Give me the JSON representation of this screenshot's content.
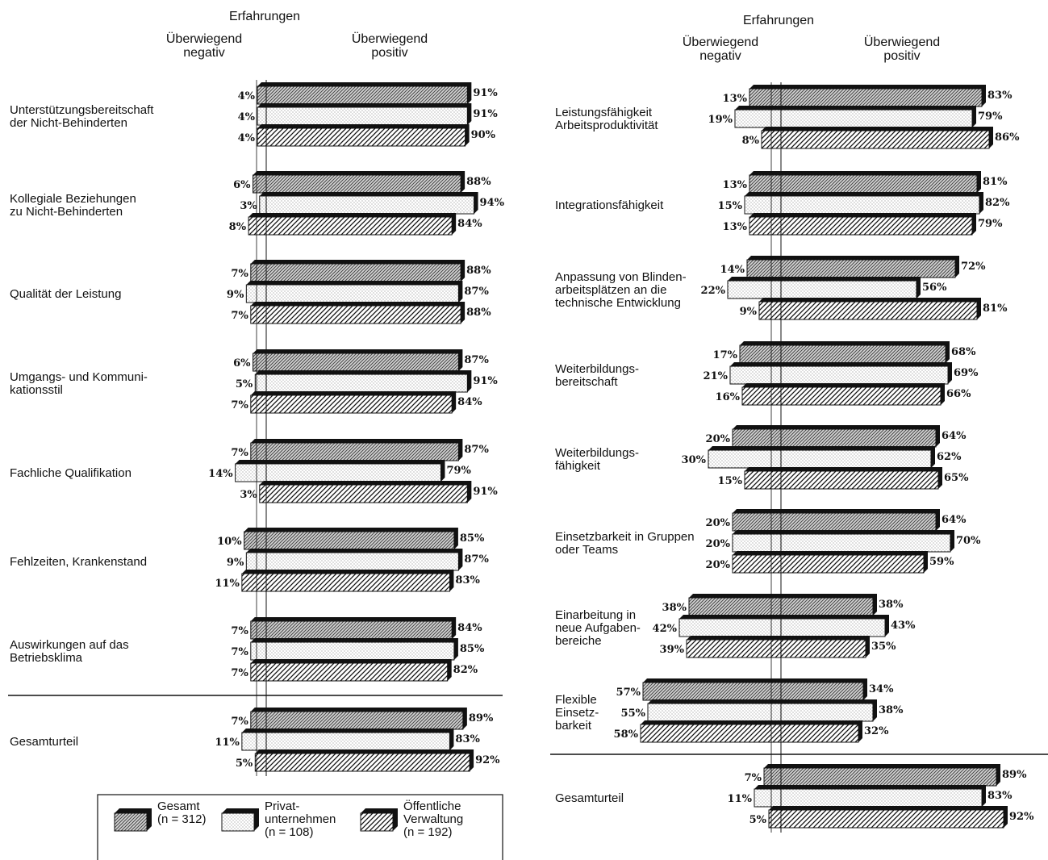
{
  "chart_data": [
    {
      "type": "bar",
      "title": "Erfahrungen",
      "negative_label": "Überwiegend negativ",
      "positive_label": "Überwiegend positiv",
      "series": [
        {
          "name": "Gesamt (n = 312)"
        },
        {
          "name": "Privatunternehmen (n = 108)"
        },
        {
          "name": "Öffentliche Verwaltung (n = 192)"
        }
      ],
      "categories": [
        {
          "label": [
            "Unterstützungsbereitschaft",
            "der Nicht-Behinderten"
          ],
          "neg": [
            4,
            4,
            4
          ],
          "pos": [
            91,
            91,
            90
          ]
        },
        {
          "label": [
            "Kollegiale Beziehungen",
            "zu Nicht-Behinderten"
          ],
          "neg": [
            6,
            3,
            8
          ],
          "pos": [
            88,
            94,
            84
          ]
        },
        {
          "label": [
            "Qualität der Leistung"
          ],
          "neg": [
            7,
            9,
            7
          ],
          "pos": [
            88,
            87,
            88
          ]
        },
        {
          "label": [
            "Umgangs- und Kommuni-",
            "kationsstil"
          ],
          "neg": [
            6,
            5,
            7
          ],
          "pos": [
            87,
            91,
            84
          ]
        },
        {
          "label": [
            "Fachliche Qualifikation"
          ],
          "neg": [
            7,
            14,
            3
          ],
          "pos": [
            87,
            79,
            91
          ]
        },
        {
          "label": [
            "Fehlzeiten, Krankenstand"
          ],
          "neg": [
            10,
            9,
            11
          ],
          "pos": [
            85,
            87,
            83
          ]
        },
        {
          "label": [
            "Auswirkungen auf das",
            "Betriebsklima"
          ],
          "neg": [
            7,
            7,
            7
          ],
          "pos": [
            84,
            85,
            82
          ]
        },
        {
          "label": [
            "Gesamturteil"
          ],
          "neg": [
            7,
            11,
            5
          ],
          "pos": [
            89,
            83,
            92
          ],
          "separated": true
        }
      ]
    },
    {
      "type": "bar",
      "title": "Erfahrungen",
      "negative_label": "Überwiegend negativ",
      "positive_label": "Überwiegend positiv",
      "series": [
        {
          "name": "Gesamt (n = 312)"
        },
        {
          "name": "Privatunternehmen (n = 108)"
        },
        {
          "name": "Öffentliche Verwaltung (n = 192)"
        }
      ],
      "categories": [
        {
          "label": [
            "Leistungsfähigkeit",
            "Arbeitsproduktivität"
          ],
          "neg": [
            13,
            19,
            8
          ],
          "pos": [
            83,
            79,
            86
          ]
        },
        {
          "label": [
            "Integrationsfähigkeit"
          ],
          "neg": [
            13,
            15,
            13
          ],
          "pos": [
            81,
            82,
            79
          ]
        },
        {
          "label": [
            "Anpassung von Blinden-",
            "arbeitsplätzen an die",
            "technische Entwicklung"
          ],
          "neg": [
            14,
            22,
            9
          ],
          "pos": [
            72,
            56,
            81
          ]
        },
        {
          "label": [
            "Weiterbildungs-",
            "bereitschaft"
          ],
          "neg": [
            17,
            21,
            16
          ],
          "pos": [
            68,
            69,
            66
          ]
        },
        {
          "label": [
            "Weiterbildungs-",
            "fähigkeit"
          ],
          "neg": [
            20,
            30,
            15
          ],
          "pos": [
            64,
            62,
            65
          ]
        },
        {
          "label": [
            "Einsetzbarkeit in Gruppen",
            "oder Teams"
          ],
          "neg": [
            20,
            20,
            20
          ],
          "pos": [
            64,
            70,
            59
          ]
        },
        {
          "label": [
            "Einarbeitung in",
            "neue Aufgaben-",
            "bereiche"
          ],
          "neg": [
            38,
            42,
            39
          ],
          "pos": [
            38,
            43,
            35
          ]
        },
        {
          "label": [
            "Flexible",
            "Einsetz-",
            "barkeit"
          ],
          "neg": [
            57,
            55,
            58
          ],
          "pos": [
            34,
            38,
            32
          ]
        },
        {
          "label": [
            "Gesamturteil"
          ],
          "neg": [
            7,
            11,
            5
          ],
          "pos": [
            89,
            83,
            92
          ],
          "separated": true
        }
      ]
    }
  ],
  "legend": [
    {
      "lines": [
        "Gesamt",
        "(n = 312)"
      ]
    },
    {
      "lines": [
        "Privat-",
        "unternehmen",
        "(n = 108)"
      ]
    },
    {
      "lines": [
        "Öffentliche",
        "Verwaltung",
        "(n = 192)"
      ]
    }
  ]
}
